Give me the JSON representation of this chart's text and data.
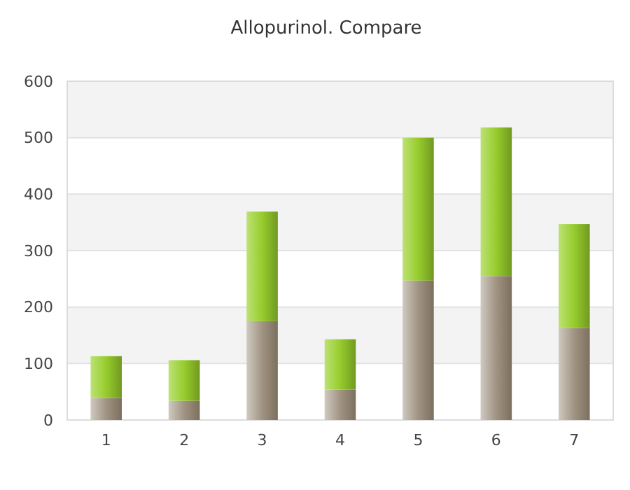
{
  "chart_data": {
    "type": "bar",
    "title": "Allopurinol. Compare",
    "stacked": true,
    "categories": [
      "1",
      "2",
      "3",
      "4",
      "5",
      "6",
      "7"
    ],
    "series": [
      {
        "color": "#a09382",
        "values": [
          39,
          34,
          175,
          54,
          247,
          255,
          163
        ]
      },
      {
        "color": "#96cc2c",
        "values": [
          74,
          72,
          194,
          89,
          253,
          263,
          184
        ]
      }
    ],
    "ylim": [
      0,
      600
    ],
    "yticks": [
      0,
      100,
      200,
      300,
      400,
      500,
      600
    ],
    "grid": "y"
  }
}
